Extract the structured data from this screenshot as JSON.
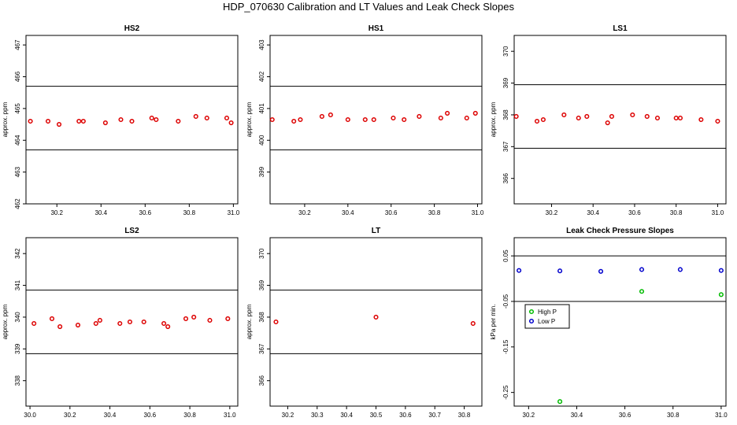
{
  "main_title": "HDP_070630  Calibration and LT Values and Leak Check Slopes",
  "chart_data": [
    {
      "id": "hs2",
      "type": "scatter",
      "title": "HS2",
      "xlabel": "",
      "ylabel": "approx. ppm",
      "xlim": [
        30.06,
        31.02
      ],
      "ylim": [
        462,
        467.3
      ],
      "xticks": [
        30.2,
        30.4,
        30.6,
        30.8,
        31.0
      ],
      "xtick_labels": [
        "30.2",
        "30.4",
        "30.6",
        "30.8",
        "31.0"
      ],
      "yticks": [
        462,
        463,
        464,
        465,
        466,
        467
      ],
      "ytick_labels": [
        "462",
        "463",
        "464",
        "465",
        "466",
        "467"
      ],
      "hlines": [
        465.7,
        463.7
      ],
      "series": [
        {
          "color": "#dd0000",
          "x": [
            30.08,
            30.16,
            30.21,
            30.3,
            30.32,
            30.42,
            30.49,
            30.54,
            30.63,
            30.65,
            30.75,
            30.83,
            30.88,
            30.97,
            30.99
          ],
          "y": [
            464.6,
            464.6,
            464.5,
            464.6,
            464.6,
            464.55,
            464.65,
            464.6,
            464.7,
            464.65,
            464.6,
            464.75,
            464.7,
            464.7,
            464.55
          ]
        }
      ]
    },
    {
      "id": "hs1",
      "type": "scatter",
      "title": "HS1",
      "xlabel": "",
      "ylabel": "approx. ppm",
      "xlim": [
        30.04,
        31.02
      ],
      "ylim": [
        398,
        403.3
      ],
      "xticks": [
        30.2,
        30.4,
        30.6,
        30.8,
        31.0
      ],
      "xtick_labels": [
        "30.2",
        "30.4",
        "30.6",
        "30.8",
        "31.0"
      ],
      "yticks": [
        399,
        400,
        401,
        402,
        403
      ],
      "ytick_labels": [
        "399",
        "400",
        "401",
        "402",
        "403"
      ],
      "hlines": [
        401.7,
        399.7
      ],
      "series": [
        {
          "color": "#dd0000",
          "x": [
            30.05,
            30.15,
            30.18,
            30.28,
            30.32,
            30.4,
            30.48,
            30.52,
            30.61,
            30.66,
            30.73,
            30.83,
            30.86,
            30.95,
            30.99
          ],
          "y": [
            400.65,
            400.6,
            400.65,
            400.75,
            400.8,
            400.65,
            400.65,
            400.65,
            400.7,
            400.65,
            400.75,
            400.7,
            400.85,
            400.7,
            400.85
          ]
        }
      ]
    },
    {
      "id": "ls1",
      "type": "scatter",
      "title": "LS1",
      "xlabel": "",
      "ylabel": "approx. ppm",
      "xlim": [
        30.02,
        31.04
      ],
      "ylim": [
        365.2,
        370.5
      ],
      "xticks": [
        30.2,
        30.4,
        30.6,
        30.8,
        31.0
      ],
      "xtick_labels": [
        "30.2",
        "30.4",
        "30.6",
        "30.8",
        "31.0"
      ],
      "yticks": [
        366,
        367,
        368,
        369,
        370
      ],
      "ytick_labels": [
        "366",
        "367",
        "368",
        "369",
        "370"
      ],
      "hlines": [
        368.95,
        366.95
      ],
      "series": [
        {
          "color": "#dd0000",
          "x": [
            30.03,
            30.13,
            30.16,
            30.26,
            30.33,
            30.37,
            30.47,
            30.49,
            30.59,
            30.66,
            30.71,
            30.8,
            30.82,
            30.92,
            31.0
          ],
          "y": [
            367.95,
            367.8,
            367.85,
            368.0,
            367.9,
            367.95,
            367.75,
            367.95,
            368.0,
            367.95,
            367.9,
            367.9,
            367.9,
            367.85,
            367.8
          ]
        }
      ]
    },
    {
      "id": "ls2",
      "type": "scatter",
      "title": "LS2",
      "xlabel": "",
      "ylabel": "approx. ppm",
      "xlim": [
        29.98,
        31.04
      ],
      "ylim": [
        337.2,
        342.5
      ],
      "xticks": [
        30.0,
        30.2,
        30.4,
        30.6,
        30.8,
        31.0
      ],
      "xtick_labels": [
        "30.0",
        "30.2",
        "30.4",
        "30.6",
        "30.8",
        "31.0"
      ],
      "yticks": [
        338,
        339,
        340,
        341,
        342
      ],
      "ytick_labels": [
        "338",
        "339",
        "340",
        "341",
        "342"
      ],
      "hlines": [
        340.85,
        338.85
      ],
      "series": [
        {
          "color": "#dd0000",
          "x": [
            30.02,
            30.11,
            30.15,
            30.24,
            30.33,
            30.35,
            30.45,
            30.5,
            30.57,
            30.67,
            30.69,
            30.78,
            30.82,
            30.9,
            30.99
          ],
          "y": [
            339.8,
            339.95,
            339.7,
            339.75,
            339.8,
            339.9,
            339.8,
            339.85,
            339.85,
            339.8,
            339.7,
            339.95,
            340.0,
            339.9,
            339.95
          ]
        }
      ]
    },
    {
      "id": "lt",
      "type": "scatter",
      "title": "LT",
      "xlabel": "",
      "ylabel": "approx. ppm",
      "xlim": [
        30.14,
        30.86
      ],
      "ylim": [
        365.2,
        370.5
      ],
      "xticks": [
        30.2,
        30.3,
        30.4,
        30.5,
        30.6,
        30.7,
        30.8
      ],
      "xtick_labels": [
        "30.2",
        "30.3",
        "30.4",
        "30.5",
        "30.6",
        "30.7",
        "30.8"
      ],
      "yticks": [
        366,
        367,
        368,
        369,
        370
      ],
      "ytick_labels": [
        "366",
        "367",
        "368",
        "369",
        "370"
      ],
      "hlines": [
        368.85,
        366.85
      ],
      "series": [
        {
          "color": "#dd0000",
          "x": [
            30.16,
            30.5,
            30.83
          ],
          "y": [
            367.85,
            368.0,
            367.8
          ]
        }
      ]
    },
    {
      "id": "leak",
      "type": "scatter",
      "title": "Leak Check Pressure Slopes",
      "xlabel": "",
      "ylabel": "kPa per min.",
      "xlim": [
        30.14,
        31.02
      ],
      "ylim": [
        -0.28,
        0.09
      ],
      "xticks": [
        30.2,
        30.4,
        30.6,
        30.8,
        31.0
      ],
      "xtick_labels": [
        "30.2",
        "30.4",
        "30.6",
        "30.8",
        "31.0"
      ],
      "yticks": [
        0.05,
        -0.05,
        -0.15,
        -0.25
      ],
      "ytick_labels": [
        "0.05",
        "-0.05",
        "-0.15",
        "-0.25"
      ],
      "hlines": [
        0.05,
        -0.05
      ],
      "legend": {
        "position": "middle-left",
        "entries": [
          {
            "label": "High P",
            "color": "#00bb00"
          },
          {
            "label": "Low P",
            "color": "#0000cc"
          }
        ]
      },
      "series": [
        {
          "name": "High P",
          "color": "#00bb00",
          "x": [
            30.33,
            30.67,
            31.0
          ],
          "y": [
            -0.27,
            -0.028,
            -0.035
          ]
        },
        {
          "name": "Low P",
          "color": "#0000cc",
          "x": [
            30.16,
            30.33,
            30.5,
            30.67,
            30.83,
            31.0
          ],
          "y": [
            0.018,
            0.017,
            0.016,
            0.02,
            0.02,
            0.018
          ]
        }
      ]
    }
  ]
}
